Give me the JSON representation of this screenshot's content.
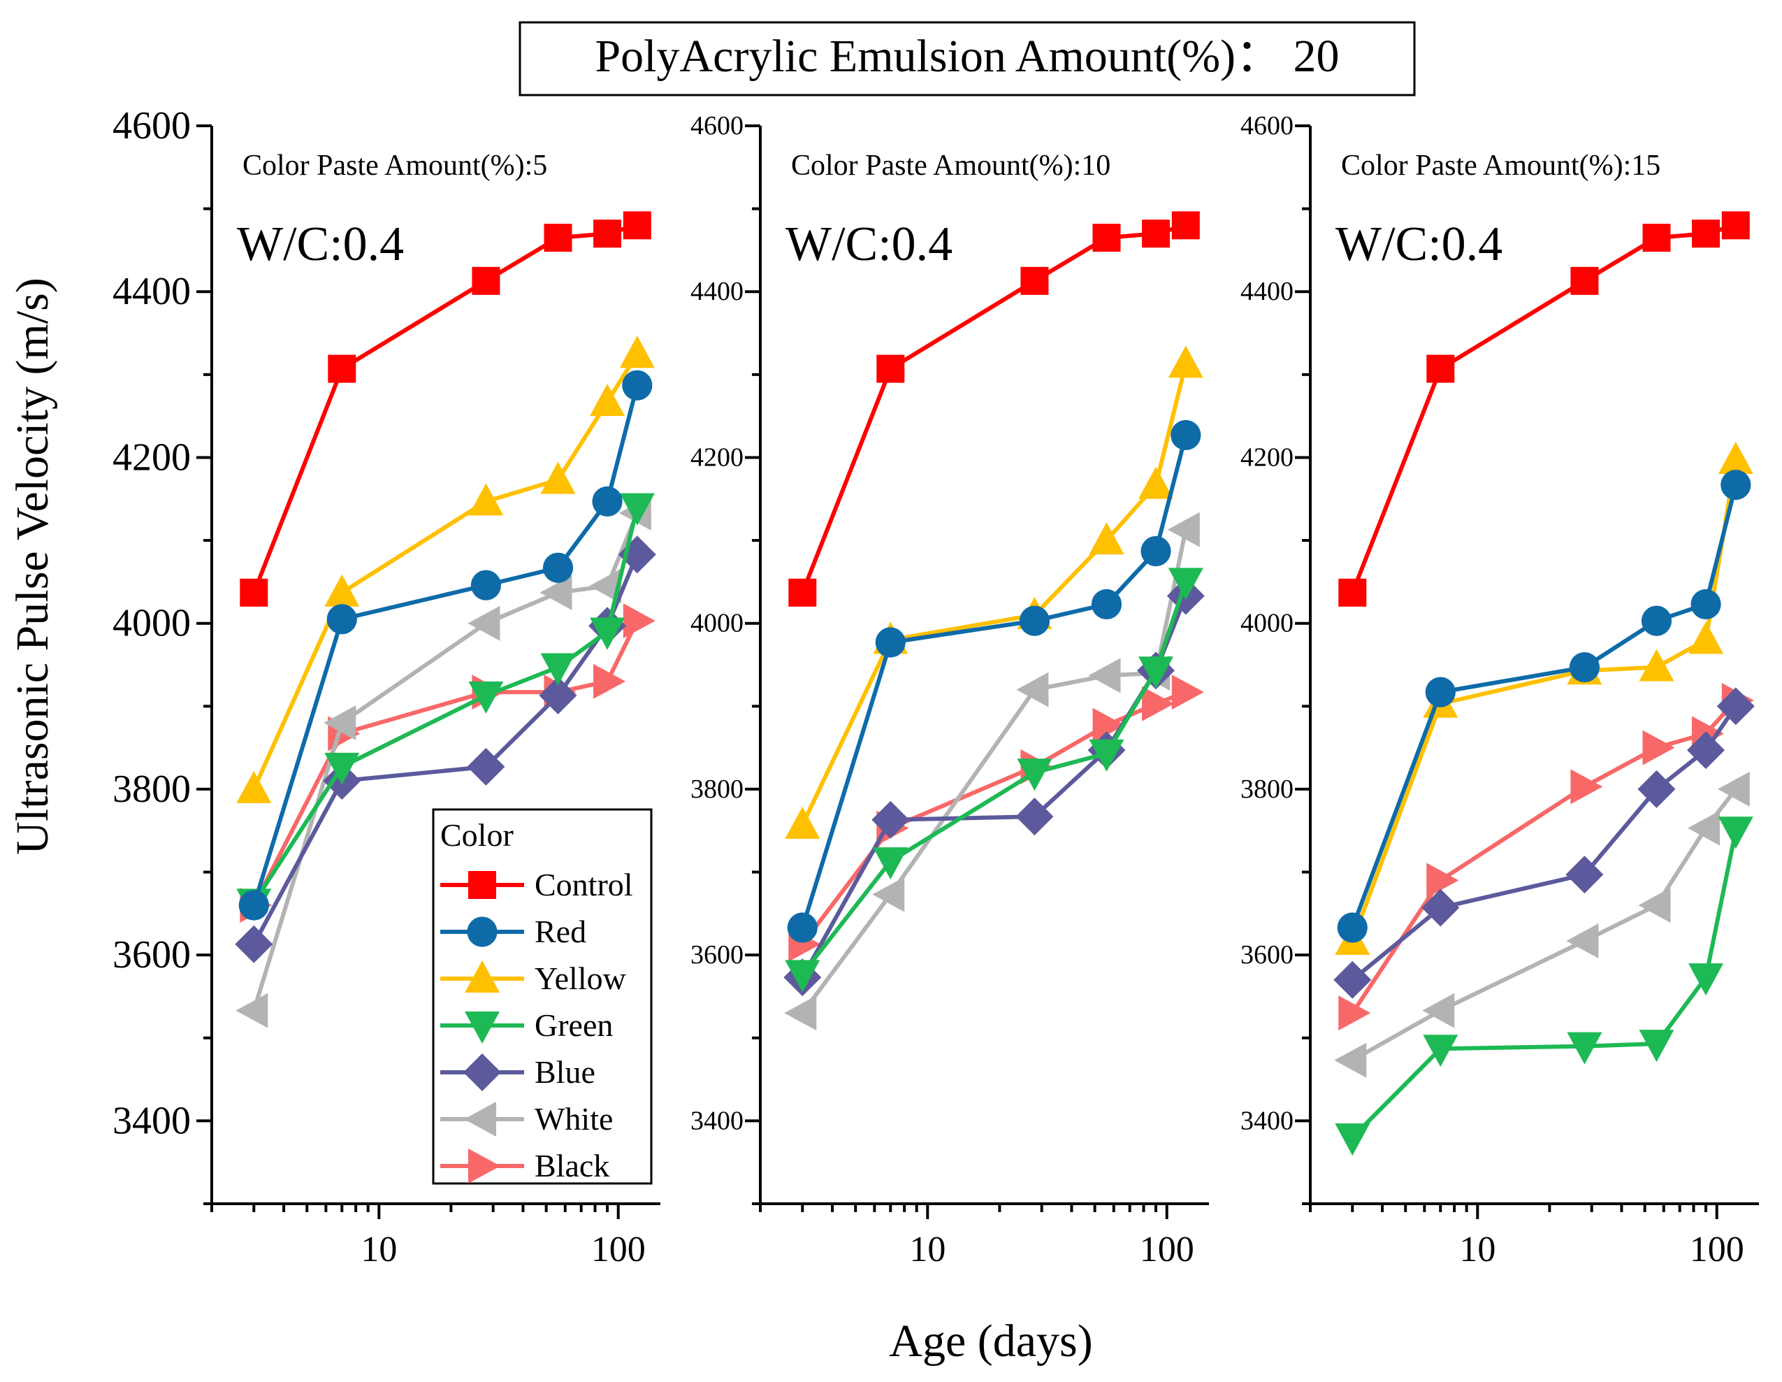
{
  "header": {
    "title": "PolyAcrylic Emulsion Amount(%)： 20"
  },
  "axes": {
    "ylabel": "Ultrasonic Pulse Velocity (m/s)",
    "xlabel": "Age (days)",
    "ylim": [
      3300,
      4600
    ],
    "yticks": [
      3400,
      3600,
      3800,
      4000,
      4200,
      4400,
      4600
    ],
    "xlim": [
      2,
      150
    ],
    "xscale": "log",
    "xticks": [
      10,
      100
    ],
    "xtick_labels": [
      "10",
      "100"
    ]
  },
  "legend": {
    "title": "Color",
    "placement": "bottom-right of first panel",
    "items": [
      "Control",
      "Red",
      "Yellow",
      "Green",
      "Blue",
      "White",
      "Black"
    ]
  },
  "series_styles": [
    {
      "name": "Control",
      "color": "#ff0000",
      "marker": "square"
    },
    {
      "name": "Red",
      "color": "#0e6ba8",
      "marker": "circle"
    },
    {
      "name": "Yellow",
      "color": "#ffc000",
      "marker": "triangle-up"
    },
    {
      "name": "Green",
      "color": "#1db954",
      "marker": "triangle-down"
    },
    {
      "name": "Blue",
      "color": "#5c5a9c",
      "marker": "diamond"
    },
    {
      "name": "White",
      "color": "#b3b3b3",
      "marker": "triangle-left"
    },
    {
      "name": "Black",
      "color": "#f86868",
      "marker": "triangle-right"
    }
  ],
  "chart_data": [
    {
      "type": "line",
      "subtitle": "Color Paste Amount(%):5",
      "annotation": "W/C:0.4",
      "x": [
        3,
        7,
        28,
        56,
        90,
        120
      ],
      "series": [
        {
          "name": "Control",
          "values": [
            4037,
            4307,
            4413,
            4465,
            4470,
            4480
          ]
        },
        {
          "name": "Red",
          "values": [
            3660,
            4005,
            4046,
            4067,
            4147,
            4287
          ]
        },
        {
          "name": "Yellow",
          "values": [
            3800,
            4037,
            4147,
            4173,
            4267,
            4325
          ]
        },
        {
          "name": "Green",
          "values": [
            3663,
            3827,
            3913,
            3947,
            3990,
            4140
          ]
        },
        {
          "name": "Blue",
          "values": [
            3613,
            3810,
            3827,
            3913,
            3997,
            4083
          ]
        },
        {
          "name": "White",
          "values": [
            3533,
            3880,
            4000,
            4037,
            4045,
            4133
          ]
        },
        {
          "name": "Black",
          "values": [
            3660,
            3867,
            3917,
            3917,
            3930,
            4003
          ]
        }
      ]
    },
    {
      "type": "line",
      "subtitle": "Color Paste Amount(%):10",
      "annotation": "W/C:0.4",
      "x": [
        3,
        7,
        28,
        56,
        90,
        120
      ],
      "series": [
        {
          "name": "Control",
          "values": [
            4037,
            4307,
            4413,
            4465,
            4470,
            4480
          ]
        },
        {
          "name": "Red",
          "values": [
            3633,
            3977,
            4003,
            4023,
            4087,
            4227
          ]
        },
        {
          "name": "Yellow",
          "values": [
            3757,
            3980,
            4010,
            4100,
            4167,
            4313
          ]
        },
        {
          "name": "Green",
          "values": [
            3577,
            3713,
            3820,
            3843,
            3943,
            4050
          ]
        },
        {
          "name": "Blue",
          "values": [
            3573,
            3763,
            3767,
            3847,
            3943,
            4033
          ]
        },
        {
          "name": "White",
          "values": [
            3530,
            3673,
            3920,
            3937,
            3940,
            4113
          ]
        },
        {
          "name": "Black",
          "values": [
            3613,
            3753,
            3827,
            3877,
            3903,
            3917
          ]
        }
      ]
    },
    {
      "type": "line",
      "subtitle": "Color Paste Amount(%):15",
      "annotation": "W/C:0.4",
      "x": [
        3,
        7,
        28,
        56,
        90,
        120
      ],
      "series": [
        {
          "name": "Control",
          "values": [
            4037,
            4307,
            4413,
            4465,
            4470,
            4480
          ]
        },
        {
          "name": "Red",
          "values": [
            3633,
            3917,
            3947,
            4003,
            4023,
            4167
          ]
        },
        {
          "name": "Yellow",
          "values": [
            3617,
            3903,
            3943,
            3947,
            3980,
            4197
          ]
        },
        {
          "name": "Green",
          "values": [
            3380,
            3487,
            3490,
            3493,
            3573,
            3750
          ]
        },
        {
          "name": "Blue",
          "values": [
            3570,
            3657,
            3697,
            3800,
            3847,
            3900
          ]
        },
        {
          "name": "White",
          "values": [
            3473,
            3533,
            3617,
            3660,
            3753,
            3800
          ]
        },
        {
          "name": "Black",
          "values": [
            3530,
            3690,
            3803,
            3850,
            3867,
            3907
          ]
        }
      ]
    }
  ]
}
